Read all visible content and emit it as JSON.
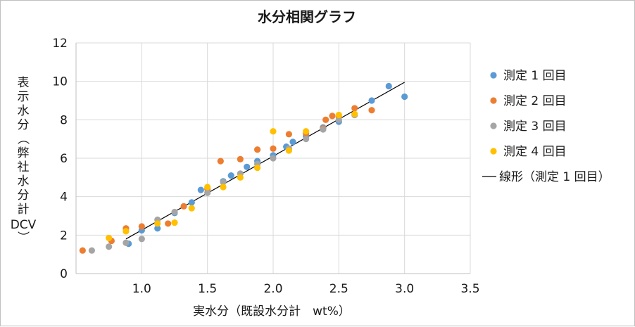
{
  "chart_data": {
    "type": "scatter",
    "title": "水分相関グラフ",
    "xlabel": "実水分（既設水分計　wt%）",
    "ylabel": "表示水分（弊社水分計DCV）",
    "xlim": [
      0.5,
      3.5
    ],
    "ylim": [
      0,
      12
    ],
    "x_ticks": [
      "1.0",
      "1.5",
      "2.0",
      "2.5",
      "3.0",
      "3.5"
    ],
    "y_ticks": [
      "0",
      "2",
      "4",
      "6",
      "8",
      "10",
      "12"
    ],
    "grid": true,
    "legend_position": "right",
    "colors": {
      "series1": "#5b9bd5",
      "series2": "#ed7d31",
      "series3": "#a5a5a5",
      "series4": "#ffc000",
      "trendline": "#000000",
      "grid": "#d9d9d9",
      "axis": "#bfbfbf"
    },
    "series": [
      {
        "name": "測定 1 回目",
        "color": "#5b9bd5",
        "points": [
          [
            0.9,
            1.55
          ],
          [
            1.0,
            2.25
          ],
          [
            1.12,
            2.35
          ],
          [
            1.25,
            3.15
          ],
          [
            1.38,
            3.7
          ],
          [
            1.45,
            4.35
          ],
          [
            1.62,
            4.8
          ],
          [
            1.68,
            5.1
          ],
          [
            1.8,
            5.55
          ],
          [
            1.88,
            5.85
          ],
          [
            2.0,
            6.15
          ],
          [
            2.1,
            6.6
          ],
          [
            2.15,
            6.85
          ],
          [
            2.25,
            7.15
          ],
          [
            2.38,
            7.6
          ],
          [
            2.5,
            7.9
          ],
          [
            2.75,
            9.0
          ],
          [
            2.88,
            9.75
          ],
          [
            3.0,
            9.2
          ]
        ]
      },
      {
        "name": "測定 2 回目",
        "color": "#ed7d31",
        "points": [
          [
            0.55,
            1.2
          ],
          [
            0.77,
            1.7
          ],
          [
            0.88,
            2.35
          ],
          [
            1.0,
            2.45
          ],
          [
            1.2,
            2.6
          ],
          [
            1.32,
            3.5
          ],
          [
            1.5,
            4.4
          ],
          [
            1.6,
            5.85
          ],
          [
            1.75,
            5.95
          ],
          [
            1.88,
            6.45
          ],
          [
            2.0,
            6.5
          ],
          [
            2.12,
            7.25
          ],
          [
            2.25,
            7.3
          ],
          [
            2.38,
            7.55
          ],
          [
            2.4,
            8.0
          ],
          [
            2.45,
            8.2
          ],
          [
            2.5,
            8.15
          ],
          [
            2.62,
            8.6
          ],
          [
            2.75,
            8.5
          ]
        ]
      },
      {
        "name": "測定 3 回目",
        "color": "#a5a5a5",
        "points": [
          [
            0.62,
            1.2
          ],
          [
            0.75,
            1.4
          ],
          [
            0.88,
            1.6
          ],
          [
            1.0,
            1.8
          ],
          [
            1.12,
            2.8
          ],
          [
            1.25,
            3.2
          ],
          [
            1.5,
            4.2
          ],
          [
            1.62,
            4.75
          ],
          [
            1.75,
            5.2
          ],
          [
            1.88,
            5.7
          ],
          [
            2.0,
            6.0
          ],
          [
            2.12,
            6.5
          ],
          [
            2.25,
            7.0
          ],
          [
            2.38,
            7.5
          ],
          [
            2.5,
            8.0
          ],
          [
            2.62,
            8.25
          ]
        ]
      },
      {
        "name": "測定 4 回目",
        "color": "#ffc000",
        "points": [
          [
            0.75,
            1.85
          ],
          [
            0.88,
            2.2
          ],
          [
            1.12,
            2.6
          ],
          [
            1.25,
            2.65
          ],
          [
            1.38,
            3.4
          ],
          [
            1.5,
            4.5
          ],
          [
            1.62,
            4.5
          ],
          [
            1.75,
            5.0
          ],
          [
            1.88,
            5.5
          ],
          [
            2.0,
            7.4
          ],
          [
            2.12,
            6.4
          ],
          [
            2.25,
            7.4
          ],
          [
            2.5,
            8.25
          ],
          [
            2.62,
            8.3
          ]
        ]
      }
    ],
    "trendline": {
      "name": "線形（測定 1 回目）",
      "of_series": "測定 1 回目",
      "from": [
        0.88,
        1.8
      ],
      "to": [
        3.0,
        9.95
      ]
    }
  }
}
